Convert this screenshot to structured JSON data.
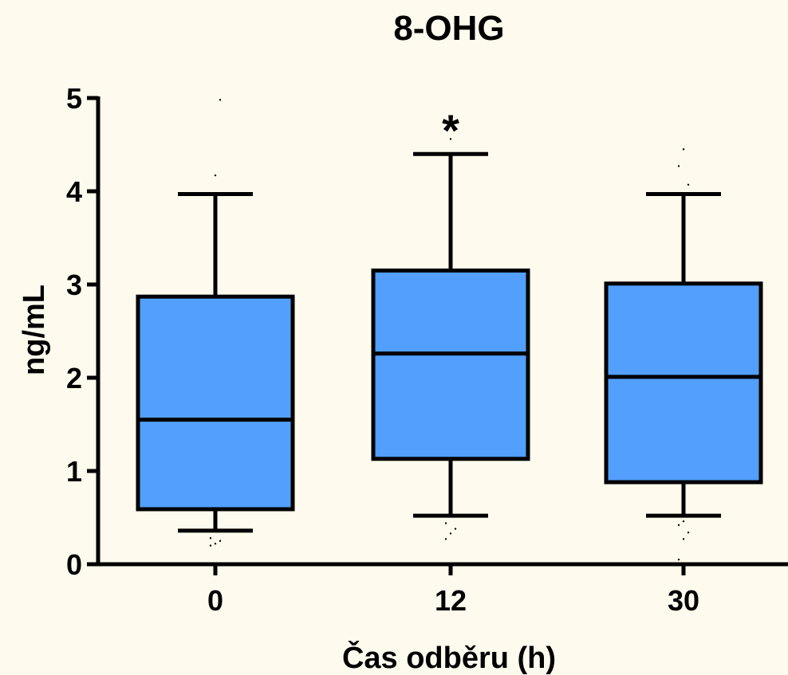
{
  "chart_data": {
    "type": "box",
    "title": "8-OHG",
    "xlabel": "Čas odběru (h)",
    "ylabel": "ng/mL",
    "ylim": [
      0,
      5
    ],
    "yticks": [
      "0",
      "1",
      "2",
      "3",
      "4",
      "5"
    ],
    "grid": false,
    "legend": "none",
    "colors": {
      "box_fill": "#529ffd",
      "stroke": "#000000",
      "background": "#fefbee"
    },
    "categories": [
      "0",
      "12",
      "30"
    ],
    "boxes": [
      {
        "category": "0",
        "whisker_low": 0.36,
        "q1": 0.59,
        "median": 1.55,
        "q3": 2.87,
        "whisker_high": 3.97,
        "outliers": [
          0.2,
          0.22,
          0.25,
          0.28,
          4.17,
          4.98
        ]
      },
      {
        "category": "12",
        "whisker_low": 0.52,
        "q1": 1.13,
        "median": 2.26,
        "q3": 3.15,
        "whisker_high": 4.4,
        "outliers": [
          0.27,
          0.33,
          0.38,
          0.44,
          4.56
        ]
      },
      {
        "category": "30",
        "whisker_low": 0.52,
        "q1": 0.88,
        "median": 2.01,
        "q3": 3.01,
        "whisker_high": 3.97,
        "outliers": [
          0.05,
          0.27,
          0.34,
          0.42,
          0.46,
          4.07,
          4.27,
          4.45
        ]
      }
    ],
    "annotations": [
      {
        "category": "12",
        "text": "*"
      }
    ]
  }
}
